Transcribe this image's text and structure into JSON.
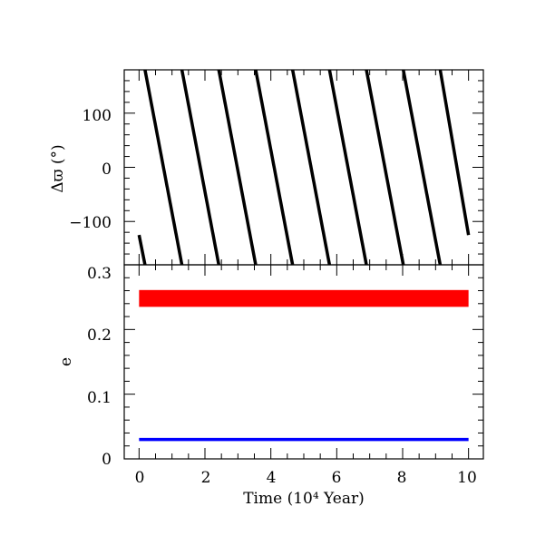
{
  "chart_data": [
    {
      "type": "line",
      "panel": "top",
      "ylabel": "Δϖ (°)",
      "xlim": [
        -0.45,
        10.45
      ],
      "ylim": [
        -180,
        180
      ],
      "yticks": [
        100,
        0,
        -100
      ],
      "ytick_labels": [
        "100",
        "0",
        "−100"
      ],
      "series": [
        {
          "color": "#000000",
          "segments": [
            [
              [
                0.0,
                -125
              ],
              [
                0.18,
                -180
              ]
            ],
            [
              [
                0.18,
                180
              ],
              [
                1.3,
                -180
              ]
            ],
            [
              [
                1.3,
                180
              ],
              [
                2.42,
                -180
              ]
            ],
            [
              [
                2.42,
                180
              ],
              [
                3.54,
                -180
              ]
            ],
            [
              [
                3.54,
                180
              ],
              [
                4.66,
                -180
              ]
            ],
            [
              [
                4.66,
                180
              ],
              [
                5.78,
                -180
              ]
            ],
            [
              [
                5.78,
                180
              ],
              [
                6.9,
                -180
              ]
            ],
            [
              [
                6.9,
                180
              ],
              [
                8.02,
                -180
              ]
            ],
            [
              [
                8.02,
                180
              ],
              [
                9.14,
                -180
              ]
            ],
            [
              [
                9.14,
                180
              ],
              [
                10.0,
                -125
              ]
            ]
          ]
        }
      ]
    },
    {
      "type": "line",
      "panel": "bottom",
      "xlabel": "Time (10⁴ Year)",
      "ylabel": "e",
      "xlim": [
        -0.45,
        10.45
      ],
      "ylim": [
        0,
        0.3
      ],
      "xticks": [
        0,
        2,
        4,
        6,
        8,
        10
      ],
      "xtick_labels": [
        "0",
        "2",
        "4",
        "6",
        "8",
        "10"
      ],
      "yticks": [
        0,
        0.1,
        0.2,
        0.3
      ],
      "ytick_labels": [
        "0",
        "0.1",
        "0.2",
        "0.3"
      ],
      "series": [
        {
          "color": "#ff0000",
          "x": [
            0,
            10
          ],
          "y_low": [
            0.235,
            0.235
          ],
          "y_high": [
            0.261,
            0.261
          ]
        },
        {
          "color": "#0000ff",
          "x": [
            0,
            10
          ],
          "y": [
            0.03,
            0.03
          ]
        }
      ]
    }
  ]
}
